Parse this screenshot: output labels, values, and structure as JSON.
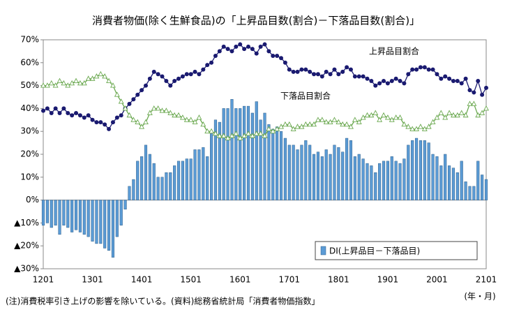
{
  "chart_data": {
    "type": "bar",
    "title": "消費者物価(除く生鮮食品)の「上昇品目数(割合)－下落品目数(割合)」",
    "note": "(注)消費税率引き上げの影響を除いている。(資料)総務省統計局「消費者物価指数」",
    "x_unit": "(年・月)",
    "categories": [
      "1201",
      null,
      null,
      null,
      null,
      null,
      null,
      null,
      null,
      null,
      null,
      null,
      "1301",
      null,
      null,
      null,
      null,
      null,
      null,
      null,
      null,
      null,
      null,
      null,
      "1401",
      null,
      null,
      null,
      null,
      null,
      null,
      null,
      null,
      null,
      null,
      null,
      "1501",
      null,
      null,
      null,
      null,
      null,
      null,
      null,
      null,
      null,
      null,
      null,
      "1601",
      null,
      null,
      null,
      null,
      null,
      null,
      null,
      null,
      null,
      null,
      null,
      "1701",
      null,
      null,
      null,
      null,
      null,
      null,
      null,
      null,
      null,
      null,
      null,
      "1801",
      null,
      null,
      null,
      null,
      null,
      null,
      null,
      null,
      null,
      null,
      null,
      "1901",
      null,
      null,
      null,
      null,
      null,
      null,
      null,
      null,
      null,
      null,
      null,
      "2001",
      null,
      null,
      null,
      null,
      null,
      null,
      null,
      null,
      null,
      null,
      null,
      "2101"
    ],
    "series": [
      {
        "name": "DI(上昇品目－下落品目)",
        "type": "bar",
        "color": "#5b9bd5",
        "values": [
          -11,
          -10,
          -12,
          -11,
          -15,
          -11,
          -12,
          -14,
          -13,
          -14,
          -15,
          -16,
          -18,
          -19,
          -19,
          -21,
          -22,
          -25,
          -16,
          -11,
          -4,
          6,
          9,
          17,
          19,
          24,
          20,
          16,
          10,
          10,
          12,
          12,
          15,
          17,
          17,
          18,
          18,
          22,
          22,
          23,
          19,
          29,
          35,
          34,
          40,
          40,
          44,
          40,
          40,
          41,
          41,
          38,
          43,
          35,
          38,
          33,
          31,
          32,
          30,
          27,
          24,
          24,
          22,
          24,
          26,
          24,
          20,
          21,
          19,
          22,
          20,
          24,
          23,
          21,
          27,
          26,
          19,
          20,
          18,
          16,
          15,
          12,
          16,
          17,
          17,
          19,
          17,
          16,
          18,
          24,
          26,
          27,
          26,
          26,
          25,
          20,
          19,
          15,
          20,
          15,
          14,
          12,
          17,
          8,
          6,
          6,
          17,
          11,
          9
        ]
      },
      {
        "name": "上昇品目割合",
        "type": "line",
        "marker": "circle",
        "color": "#1a1a70",
        "values": [
          39,
          40,
          38,
          40,
          38,
          40,
          38,
          37,
          38,
          37,
          36,
          37,
          35,
          34,
          34,
          33,
          31,
          34,
          36,
          37,
          40,
          42,
          44,
          46,
          48,
          50,
          53,
          56,
          55,
          54,
          52,
          50,
          52,
          53,
          54,
          55,
          55,
          56,
          55,
          57,
          59,
          60,
          63,
          65,
          67,
          66,
          65,
          67,
          68,
          66,
          67,
          66,
          64,
          67,
          68,
          65,
          63,
          63,
          62,
          60,
          57,
          56,
          56,
          57,
          57,
          56,
          55,
          55,
          54,
          56,
          55,
          57,
          55,
          56,
          58,
          57,
          54,
          54,
          54,
          53,
          52,
          50,
          51,
          52,
          51,
          52,
          53,
          52,
          51,
          55,
          57,
          57,
          58,
          58,
          57,
          57,
          55,
          53,
          54,
          53,
          52,
          52,
          51,
          53,
          48,
          47,
          52,
          46,
          49
        ]
      },
      {
        "name": "下落品目割合",
        "type": "line",
        "marker": "triangle",
        "color": "#6aa84f",
        "values": [
          50,
          50,
          51,
          50,
          52,
          51,
          50,
          51,
          52,
          51,
          51,
          53,
          53,
          54,
          55,
          54,
          52,
          50,
          46,
          43,
          40,
          37,
          35,
          34,
          32,
          34,
          38,
          40,
          40,
          39,
          39,
          38,
          37,
          37,
          36,
          35,
          35,
          34,
          36,
          33,
          30,
          30,
          29,
          28,
          28,
          27,
          28,
          29,
          27,
          28,
          29,
          28,
          29,
          29,
          28,
          31,
          30,
          31,
          32,
          33,
          33,
          31,
          32,
          32,
          33,
          33,
          33,
          35,
          35,
          34,
          34,
          35,
          34,
          33,
          33,
          32,
          35,
          34,
          36,
          37,
          37,
          38,
          35,
          37,
          36,
          35,
          36,
          36,
          33,
          32,
          31,
          31,
          32,
          31,
          32,
          34,
          36,
          38,
          36,
          38,
          37,
          37,
          38,
          37,
          42,
          42,
          37,
          38,
          40
        ]
      }
    ],
    "ylim": [
      -30,
      70
    ],
    "yticks": [
      {
        "value": -30,
        "label": "▲30%"
      },
      {
        "value": -20,
        "label": "▲20%"
      },
      {
        "value": -10,
        "label": "▲10%"
      },
      {
        "value": 0,
        "label": "0%"
      },
      {
        "value": 10,
        "label": "10%"
      },
      {
        "value": 20,
        "label": "20%"
      },
      {
        "value": 30,
        "label": "30%"
      },
      {
        "value": 40,
        "label": "40%"
      },
      {
        "value": 50,
        "label": "50%"
      },
      {
        "value": 60,
        "label": "60%"
      },
      {
        "value": 70,
        "label": "70%"
      }
    ],
    "grid": false,
    "legend": "bottom-right"
  }
}
